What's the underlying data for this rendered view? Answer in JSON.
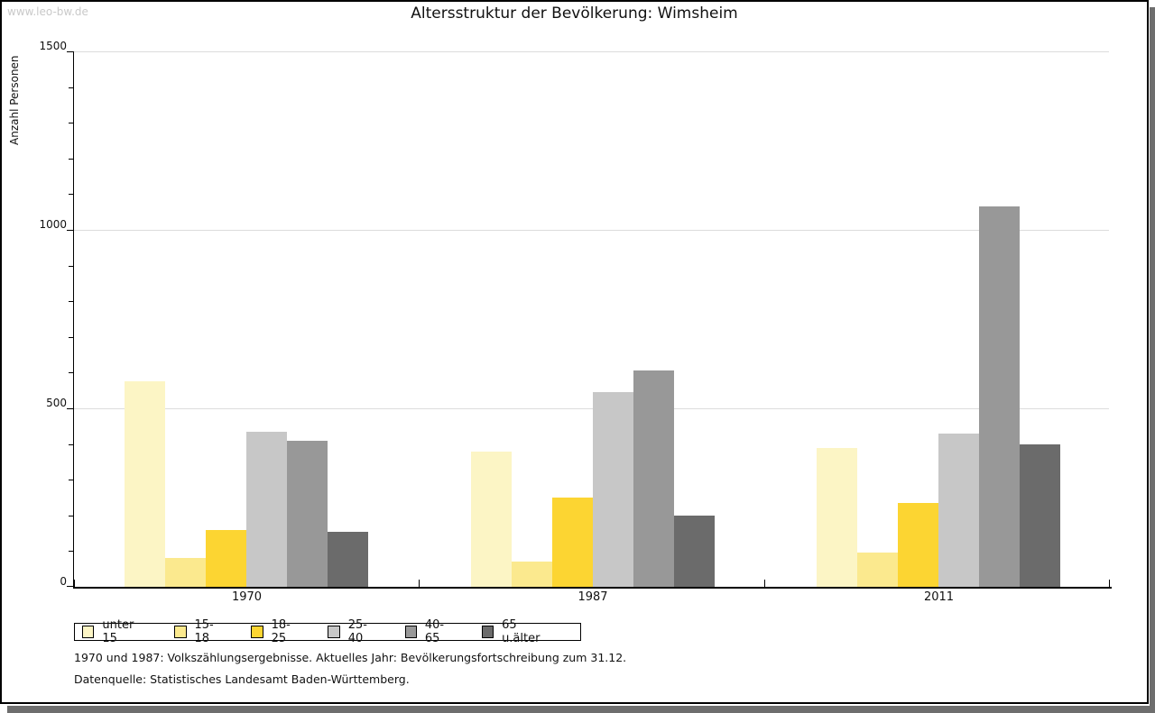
{
  "watermark": "www.leo-bw.de",
  "title": "Altersstruktur der Bevölkerung: Wimsheim",
  "chart_data": {
    "type": "bar",
    "title": "Altersstruktur der Bevölkerung: Wimsheim",
    "xlabel": "",
    "ylabel": "Anzahl Personen",
    "ylim": [
      0,
      1500
    ],
    "yticks": [
      0,
      500,
      1000,
      1500
    ],
    "minor_tick_step": 100,
    "grid": "horizontal light gray at major ticks",
    "legend_position": "bottom-left boxed",
    "categories": [
      "1970",
      "1987",
      "2011"
    ],
    "series": [
      {
        "name": "unter 15",
        "color": "#fcf5c5",
        "values": [
          575,
          380,
          390
        ]
      },
      {
        "name": "15-18",
        "color": "#fbe98e",
        "values": [
          80,
          70,
          95
        ]
      },
      {
        "name": "18-25",
        "color": "#fcd532",
        "values": [
          160,
          250,
          235
        ]
      },
      {
        "name": "25-40",
        "color": "#c7c7c7",
        "values": [
          435,
          545,
          430
        ]
      },
      {
        "name": "40-65",
        "color": "#989898",
        "values": [
          410,
          605,
          1065
        ]
      },
      {
        "name": "65 u.älter",
        "color": "#6b6b6b",
        "values": [
          155,
          200,
          400
        ]
      }
    ]
  },
  "footnotes": [
    "1970 und 1987: Volkszählungsergebnisse. Aktuelles Jahr: Bevölkerungsfortschreibung zum 31.12.",
    "Datenquelle: Statistisches Landesamt Baden-Württemberg."
  ]
}
